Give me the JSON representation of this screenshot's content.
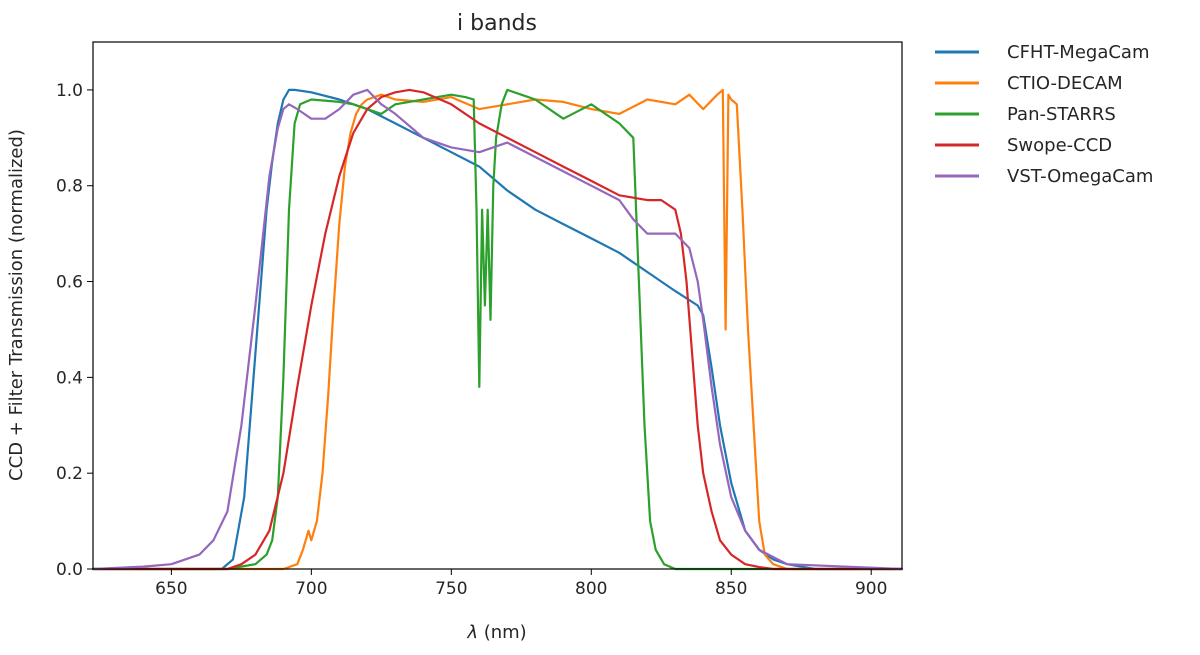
{
  "chart_data": {
    "type": "line",
    "title": "i bands",
    "xlabel_symbol": "λ",
    "xlabel_unit": " (nm)",
    "ylabel": "CCD + Filter Transmission (normalized)",
    "xlim": [
      622,
      911
    ],
    "ylim": [
      0,
      1.1
    ],
    "xticks": [
      650,
      700,
      750,
      800,
      850,
      900
    ],
    "yticks": [
      0.0,
      0.2,
      0.4,
      0.6,
      0.8,
      1.0
    ],
    "xtick_labels": [
      "650",
      "700",
      "750",
      "800",
      "850",
      "900"
    ],
    "ytick_labels": [
      "0.0",
      "0.2",
      "0.4",
      "0.6",
      "0.8",
      "1.0"
    ],
    "legend_position": "outside-right",
    "grid": false,
    "series": [
      {
        "name": "CFHT-MegaCam",
        "color": "#1f77b4",
        "x": [
          622,
          668,
          672,
          676,
          680,
          684,
          686,
          688,
          690,
          692,
          694,
          700,
          710,
          720,
          730,
          740,
          750,
          760,
          770,
          780,
          790,
          800,
          810,
          820,
          830,
          838,
          840,
          843,
          846,
          850,
          855,
          860,
          865,
          870,
          880,
          911
        ],
        "y": [
          0,
          0,
          0.02,
          0.15,
          0.45,
          0.75,
          0.85,
          0.93,
          0.98,
          1.0,
          1.0,
          0.995,
          0.98,
          0.96,
          0.93,
          0.9,
          0.87,
          0.84,
          0.79,
          0.75,
          0.72,
          0.69,
          0.66,
          0.62,
          0.58,
          0.55,
          0.53,
          0.42,
          0.3,
          0.18,
          0.08,
          0.04,
          0.02,
          0.01,
          0,
          0
        ]
      },
      {
        "name": "CTIO-DECAM",
        "color": "#ff7f0e",
        "x": [
          622,
          690,
          695,
          697,
          699,
          700,
          702,
          704,
          706,
          708,
          710,
          712,
          714,
          716,
          718,
          720,
          725,
          730,
          740,
          750,
          760,
          770,
          780,
          790,
          800,
          810,
          820,
          830,
          835,
          840,
          845,
          847,
          848,
          849,
          850,
          852,
          854,
          856,
          858,
          860,
          862,
          865,
          870,
          911
        ],
        "y": [
          0,
          0,
          0.01,
          0.04,
          0.08,
          0.06,
          0.1,
          0.2,
          0.36,
          0.55,
          0.72,
          0.84,
          0.91,
          0.95,
          0.97,
          0.98,
          0.99,
          0.98,
          0.975,
          0.985,
          0.96,
          0.97,
          0.98,
          0.975,
          0.96,
          0.95,
          0.98,
          0.97,
          0.99,
          0.96,
          0.99,
          1.0,
          0.5,
          0.99,
          0.98,
          0.97,
          0.75,
          0.5,
          0.3,
          0.1,
          0.03,
          0.01,
          0,
          0
        ]
      },
      {
        "name": "Pan-STARRS",
        "color": "#2ca02c",
        "x": [
          622,
          670,
          680,
          684,
          686,
          688,
          690,
          692,
          694,
          696,
          700,
          710,
          715,
          720,
          725,
          730,
          740,
          750,
          755,
          758,
          759,
          760,
          761,
          762,
          763,
          764,
          765,
          766,
          768,
          770,
          775,
          780,
          790,
          800,
          810,
          815,
          817,
          819,
          821,
          823,
          826,
          830,
          840,
          911
        ],
        "y": [
          0,
          0,
          0.01,
          0.03,
          0.06,
          0.15,
          0.4,
          0.75,
          0.93,
          0.97,
          0.98,
          0.975,
          0.97,
          0.96,
          0.95,
          0.97,
          0.98,
          0.99,
          0.985,
          0.98,
          0.75,
          0.38,
          0.75,
          0.55,
          0.75,
          0.52,
          0.8,
          0.9,
          0.97,
          1.0,
          0.99,
          0.98,
          0.94,
          0.97,
          0.93,
          0.9,
          0.6,
          0.3,
          0.1,
          0.04,
          0.01,
          0,
          0,
          0
        ]
      },
      {
        "name": "Swope-CCD",
        "color": "#d62728",
        "x": [
          622,
          670,
          675,
          680,
          685,
          690,
          695,
          700,
          705,
          710,
          715,
          720,
          725,
          730,
          735,
          740,
          750,
          760,
          770,
          780,
          790,
          800,
          810,
          820,
          825,
          830,
          832,
          834,
          836,
          838,
          840,
          843,
          846,
          850,
          855,
          860,
          865,
          911
        ],
        "y": [
          0,
          0,
          0.01,
          0.03,
          0.08,
          0.2,
          0.38,
          0.55,
          0.7,
          0.82,
          0.91,
          0.96,
          0.985,
          0.995,
          1.0,
          0.995,
          0.97,
          0.93,
          0.9,
          0.87,
          0.84,
          0.81,
          0.78,
          0.77,
          0.77,
          0.75,
          0.7,
          0.6,
          0.45,
          0.3,
          0.2,
          0.12,
          0.06,
          0.03,
          0.01,
          0.004,
          0,
          0
        ]
      },
      {
        "name": "VST-OmegaCam",
        "color": "#9467bd",
        "x": [
          622,
          640,
          650,
          660,
          665,
          670,
          675,
          680,
          685,
          688,
          690,
          692,
          695,
          700,
          705,
          710,
          715,
          720,
          725,
          730,
          740,
          750,
          760,
          770,
          780,
          790,
          800,
          810,
          815,
          820,
          825,
          830,
          835,
          838,
          840,
          843,
          846,
          850,
          855,
          860,
          870,
          911
        ],
        "y": [
          0,
          0.005,
          0.01,
          0.03,
          0.06,
          0.12,
          0.3,
          0.55,
          0.82,
          0.92,
          0.96,
          0.97,
          0.96,
          0.94,
          0.94,
          0.96,
          0.99,
          1.0,
          0.97,
          0.95,
          0.9,
          0.88,
          0.87,
          0.89,
          0.86,
          0.83,
          0.8,
          0.77,
          0.73,
          0.7,
          0.7,
          0.7,
          0.67,
          0.6,
          0.52,
          0.38,
          0.26,
          0.15,
          0.08,
          0.04,
          0.01,
          0
        ]
      }
    ]
  }
}
